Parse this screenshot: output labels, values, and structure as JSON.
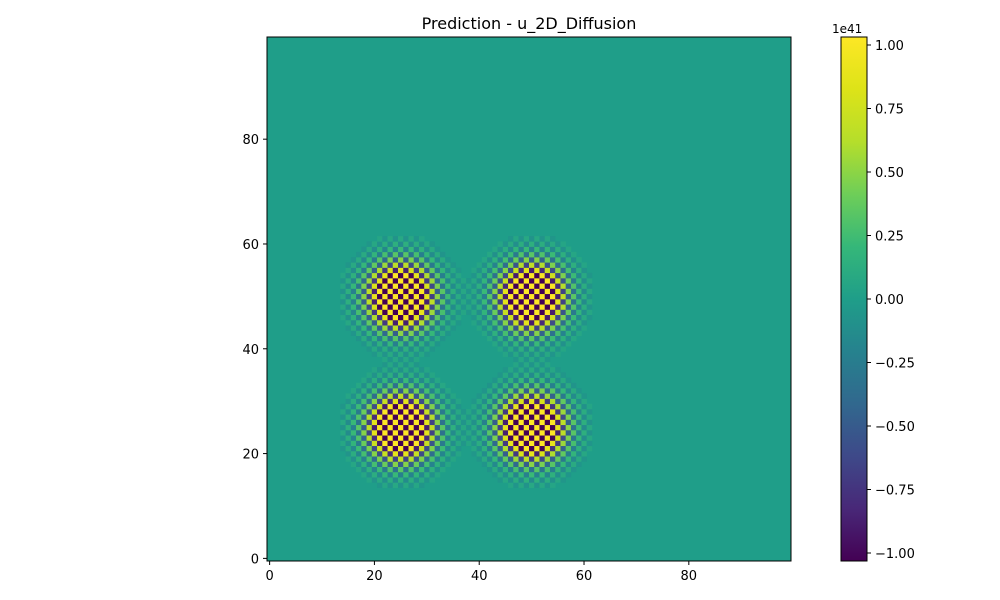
{
  "chart_data": {
    "type": "heatmap",
    "title": "Prediction - u_2D_Diffusion",
    "xlabel": "",
    "ylabel": "",
    "grid": false,
    "colormap": "viridis",
    "grid_size": [
      100,
      100
    ],
    "x_range": [
      0,
      99
    ],
    "y_range": [
      0,
      99
    ],
    "y_origin": "lower",
    "background_value": 0,
    "pattern": "checkerboard",
    "blobs": [
      {
        "cx": 25,
        "cy": 50,
        "amplitude": 1.0,
        "radius": 9
      },
      {
        "cx": 50,
        "cy": 50,
        "amplitude": 1.0,
        "radius": 9
      },
      {
        "cx": 25,
        "cy": 25,
        "amplitude": 1.0,
        "radius": 9
      },
      {
        "cx": 50,
        "cy": 25,
        "amplitude": 1.0,
        "radius": 9
      }
    ],
    "x_ticks": [
      0,
      20,
      40,
      60,
      80
    ],
    "x_tick_labels": [
      "0",
      "20",
      "40",
      "60",
      "80"
    ],
    "y_ticks": [
      0,
      20,
      40,
      60,
      80
    ],
    "y_tick_labels": [
      "0",
      "20",
      "40",
      "60",
      "80"
    ],
    "colorbar": {
      "range": [
        -1.0,
        1.0
      ],
      "ticks": [
        -1.0,
        -0.75,
        -0.5,
        -0.25,
        0.0,
        0.25,
        0.5,
        0.75,
        1.0
      ],
      "tick_labels": [
        "−1.00",
        "−0.75",
        "−0.50",
        "−0.25",
        "0.00",
        "0.25",
        "0.50",
        "0.75",
        "1.00"
      ],
      "offset_text": "1e41"
    }
  }
}
